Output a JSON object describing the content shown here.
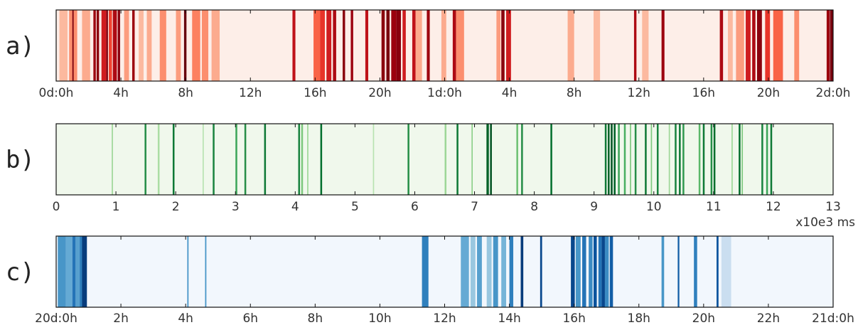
{
  "chart_data": [
    {
      "type": "heatmap",
      "panel_label": "a)",
      "colormap": "Reds",
      "base_color": "#fdeee8",
      "x_unit": "hours",
      "xlim": [
        0,
        48
      ],
      "xticks": [
        0,
        4,
        8,
        12,
        16,
        20,
        24,
        28,
        32,
        36,
        40,
        44,
        48
      ],
      "xtick_labels": [
        "0d:0h",
        "4h",
        "8h",
        "12h",
        "16h",
        "20h",
        "1d:0h",
        "4h",
        "8h",
        "12h",
        "16h",
        "20h",
        "2d:0h"
      ],
      "unit_label": "",
      "events": [
        {
          "x": 0.2,
          "w": 0.5,
          "v": 0.15
        },
        {
          "x": 0.8,
          "w": 0.5,
          "v": 0.3
        },
        {
          "x": 1.0,
          "w": 0.08,
          "v": 0.95
        },
        {
          "x": 1.6,
          "w": 0.5,
          "v": 0.2
        },
        {
          "x": 2.3,
          "w": 0.15,
          "v": 0.85
        },
        {
          "x": 2.5,
          "w": 0.15,
          "v": 0.9
        },
        {
          "x": 2.8,
          "w": 0.3,
          "v": 0.7
        },
        {
          "x": 3.1,
          "w": 0.1,
          "v": 0.95
        },
        {
          "x": 3.25,
          "w": 0.2,
          "v": 0.55
        },
        {
          "x": 3.5,
          "w": 0.25,
          "v": 0.8
        },
        {
          "x": 3.8,
          "w": 0.15,
          "v": 0.9
        },
        {
          "x": 4.2,
          "w": 0.3,
          "v": 0.25
        },
        {
          "x": 4.7,
          "w": 0.15,
          "v": 0.85
        },
        {
          "x": 5.1,
          "w": 0.3,
          "v": 0.15
        },
        {
          "x": 5.6,
          "w": 0.3,
          "v": 0.2
        },
        {
          "x": 6.4,
          "w": 0.4,
          "v": 0.3
        },
        {
          "x": 7.4,
          "w": 0.3,
          "v": 0.25
        },
        {
          "x": 7.9,
          "w": 0.15,
          "v": 1.0
        },
        {
          "x": 8.4,
          "w": 0.5,
          "v": 0.35
        },
        {
          "x": 9.0,
          "w": 0.4,
          "v": 0.3
        },
        {
          "x": 9.6,
          "w": 0.5,
          "v": 0.2
        },
        {
          "x": 14.6,
          "w": 0.18,
          "v": 0.75
        },
        {
          "x": 15.9,
          "w": 0.4,
          "v": 0.45
        },
        {
          "x": 16.3,
          "w": 0.3,
          "v": 0.6
        },
        {
          "x": 16.7,
          "w": 0.3,
          "v": 0.7
        },
        {
          "x": 17.1,
          "w": 0.2,
          "v": 0.8
        },
        {
          "x": 17.7,
          "w": 0.15,
          "v": 0.9
        },
        {
          "x": 18.2,
          "w": 0.15,
          "v": 0.85
        },
        {
          "x": 19.1,
          "w": 0.18,
          "v": 0.75
        },
        {
          "x": 20.1,
          "w": 0.2,
          "v": 0.9
        },
        {
          "x": 20.4,
          "w": 0.2,
          "v": 0.95
        },
        {
          "x": 20.7,
          "w": 0.3,
          "v": 0.85
        },
        {
          "x": 21.0,
          "w": 0.3,
          "v": 0.9
        },
        {
          "x": 21.4,
          "w": 0.2,
          "v": 0.7
        },
        {
          "x": 22.0,
          "w": 0.2,
          "v": 0.75
        },
        {
          "x": 22.1,
          "w": 0.5,
          "v": 0.2
        },
        {
          "x": 22.9,
          "w": 0.18,
          "v": 0.85
        },
        {
          "x": 23.8,
          "w": 0.3,
          "v": 0.2
        },
        {
          "x": 24.5,
          "w": 0.2,
          "v": 0.8
        },
        {
          "x": 24.7,
          "w": 0.5,
          "v": 0.3
        },
        {
          "x": 27.2,
          "w": 0.25,
          "v": 0.25
        },
        {
          "x": 27.5,
          "w": 0.2,
          "v": 0.9
        },
        {
          "x": 27.8,
          "w": 0.3,
          "v": 0.7
        },
        {
          "x": 31.6,
          "w": 0.4,
          "v": 0.2
        },
        {
          "x": 33.2,
          "w": 0.4,
          "v": 0.15
        },
        {
          "x": 35.7,
          "w": 0.15,
          "v": 0.8
        },
        {
          "x": 36.2,
          "w": 0.4,
          "v": 0.15
        },
        {
          "x": 37.4,
          "w": 0.18,
          "v": 0.85
        },
        {
          "x": 41.0,
          "w": 0.2,
          "v": 0.8
        },
        {
          "x": 41.5,
          "w": 0.3,
          "v": 0.15
        },
        {
          "x": 42.0,
          "w": 0.5,
          "v": 0.25
        },
        {
          "x": 42.6,
          "w": 0.3,
          "v": 0.7
        },
        {
          "x": 43.0,
          "w": 0.2,
          "v": 0.8
        },
        {
          "x": 43.3,
          "w": 0.3,
          "v": 0.9
        },
        {
          "x": 43.8,
          "w": 0.3,
          "v": 0.6
        },
        {
          "x": 44.3,
          "w": 0.6,
          "v": 0.45
        },
        {
          "x": 45.6,
          "w": 0.3,
          "v": 0.3
        },
        {
          "x": 47.6,
          "w": 0.18,
          "v": 0.85
        },
        {
          "x": 47.8,
          "w": 0.2,
          "v": 0.95
        }
      ]
    },
    {
      "type": "heatmap",
      "panel_label": "b)",
      "colormap": "Greens",
      "base_color": "#f0f8ec",
      "x_unit": "x10e3 ms",
      "xlim": [
        0,
        13
      ],
      "xticks": [
        0,
        1,
        2,
        3,
        4,
        5,
        6,
        7,
        8,
        9,
        10,
        11,
        12,
        13
      ],
      "xtick_labels": [
        "0",
        "1",
        "2",
        "3",
        "4",
        "5",
        "6",
        "7",
        "8",
        "9",
        "10",
        "11",
        "12",
        "13"
      ],
      "unit_label": "x10e3 ms",
      "events": [
        {
          "x": 0.93,
          "w": 0.02,
          "v": 0.3
        },
        {
          "x": 1.48,
          "w": 0.03,
          "v": 0.7
        },
        {
          "x": 1.7,
          "w": 0.03,
          "v": 0.25
        },
        {
          "x": 1.95,
          "w": 0.03,
          "v": 0.8
        },
        {
          "x": 2.45,
          "w": 0.02,
          "v": 0.2
        },
        {
          "x": 2.62,
          "w": 0.03,
          "v": 0.75
        },
        {
          "x": 3.0,
          "w": 0.03,
          "v": 0.6
        },
        {
          "x": 3.15,
          "w": 0.03,
          "v": 0.7
        },
        {
          "x": 3.48,
          "w": 0.03,
          "v": 0.8
        },
        {
          "x": 4.05,
          "w": 0.03,
          "v": 0.75
        },
        {
          "x": 4.1,
          "w": 0.03,
          "v": 0.4
        },
        {
          "x": 4.2,
          "w": 0.02,
          "v": 0.3
        },
        {
          "x": 4.42,
          "w": 0.03,
          "v": 0.85
        },
        {
          "x": 5.3,
          "w": 0.02,
          "v": 0.2
        },
        {
          "x": 5.88,
          "w": 0.03,
          "v": 0.7
        },
        {
          "x": 6.5,
          "w": 0.03,
          "v": 0.3
        },
        {
          "x": 6.7,
          "w": 0.03,
          "v": 0.8
        },
        {
          "x": 6.95,
          "w": 0.02,
          "v": 0.35
        },
        {
          "x": 7.2,
          "w": 0.04,
          "v": 0.9
        },
        {
          "x": 7.26,
          "w": 0.03,
          "v": 0.95
        },
        {
          "x": 7.7,
          "w": 0.03,
          "v": 0.45
        },
        {
          "x": 7.78,
          "w": 0.03,
          "v": 0.7
        },
        {
          "x": 8.27,
          "w": 0.03,
          "v": 0.85
        },
        {
          "x": 9.18,
          "w": 0.03,
          "v": 0.8
        },
        {
          "x": 9.23,
          "w": 0.03,
          "v": 0.9
        },
        {
          "x": 9.28,
          "w": 0.03,
          "v": 0.95
        },
        {
          "x": 9.33,
          "w": 0.03,
          "v": 0.9
        },
        {
          "x": 9.4,
          "w": 0.03,
          "v": 0.6
        },
        {
          "x": 9.5,
          "w": 0.03,
          "v": 0.55
        },
        {
          "x": 9.6,
          "w": 0.02,
          "v": 0.4
        },
        {
          "x": 9.68,
          "w": 0.03,
          "v": 0.7
        },
        {
          "x": 9.85,
          "w": 0.03,
          "v": 0.8
        },
        {
          "x": 9.95,
          "w": 0.02,
          "v": 0.4
        },
        {
          "x": 10.05,
          "w": 0.03,
          "v": 0.75
        },
        {
          "x": 10.25,
          "w": 0.02,
          "v": 0.3
        },
        {
          "x": 10.35,
          "w": 0.03,
          "v": 0.75
        },
        {
          "x": 10.42,
          "w": 0.03,
          "v": 0.8
        },
        {
          "x": 10.48,
          "w": 0.03,
          "v": 0.65
        },
        {
          "x": 10.75,
          "w": 0.03,
          "v": 0.5
        },
        {
          "x": 10.82,
          "w": 0.03,
          "v": 0.8
        },
        {
          "x": 10.95,
          "w": 0.03,
          "v": 0.7
        },
        {
          "x": 11.0,
          "w": 0.03,
          "v": 0.85
        },
        {
          "x": 11.3,
          "w": 0.02,
          "v": 0.3
        },
        {
          "x": 11.42,
          "w": 0.03,
          "v": 0.85
        },
        {
          "x": 11.47,
          "w": 0.02,
          "v": 0.4
        },
        {
          "x": 11.8,
          "w": 0.03,
          "v": 0.75
        },
        {
          "x": 11.88,
          "w": 0.03,
          "v": 0.6
        },
        {
          "x": 11.95,
          "w": 0.03,
          "v": 0.8
        }
      ]
    },
    {
      "type": "heatmap",
      "panel_label": "c)",
      "colormap": "Blues",
      "base_color": "#f2f7fd",
      "x_unit": "hours",
      "xlim": [
        0,
        24
      ],
      "xticks": [
        0,
        2,
        4,
        6,
        8,
        10,
        12,
        14,
        16,
        18,
        20,
        22,
        24
      ],
      "xtick_labels": [
        "20d:0h",
        "2h",
        "4h",
        "6h",
        "8h",
        "10h",
        "12h",
        "14h",
        "16h",
        "18h",
        "20h",
        "22h",
        "21d:0h"
      ],
      "unit_label": "",
      "events": [
        {
          "x": 0.05,
          "w": 0.25,
          "v": 0.55
        },
        {
          "x": 0.3,
          "w": 0.2,
          "v": 0.45
        },
        {
          "x": 0.5,
          "w": 0.1,
          "v": 0.7
        },
        {
          "x": 0.6,
          "w": 0.12,
          "v": 0.5
        },
        {
          "x": 0.72,
          "w": 0.1,
          "v": 0.65
        },
        {
          "x": 0.8,
          "w": 0.15,
          "v": 0.95
        },
        {
          "x": 4.05,
          "w": 0.04,
          "v": 0.55
        },
        {
          "x": 4.6,
          "w": 0.04,
          "v": 0.55
        },
        {
          "x": 11.3,
          "w": 0.2,
          "v": 0.65
        },
        {
          "x": 12.5,
          "w": 0.25,
          "v": 0.45
        },
        {
          "x": 12.8,
          "w": 0.15,
          "v": 0.3
        },
        {
          "x": 13.0,
          "w": 0.15,
          "v": 0.5
        },
        {
          "x": 13.3,
          "w": 0.15,
          "v": 0.3
        },
        {
          "x": 13.5,
          "w": 0.15,
          "v": 0.55
        },
        {
          "x": 13.75,
          "w": 0.15,
          "v": 0.4
        },
        {
          "x": 14.0,
          "w": 0.12,
          "v": 0.65
        },
        {
          "x": 14.35,
          "w": 0.08,
          "v": 0.95
        },
        {
          "x": 14.95,
          "w": 0.06,
          "v": 0.9
        },
        {
          "x": 15.9,
          "w": 0.12,
          "v": 0.9
        },
        {
          "x": 16.05,
          "w": 0.15,
          "v": 0.55
        },
        {
          "x": 16.25,
          "w": 0.12,
          "v": 0.7
        },
        {
          "x": 16.45,
          "w": 0.12,
          "v": 0.6
        },
        {
          "x": 16.6,
          "w": 0.1,
          "v": 0.85
        },
        {
          "x": 16.75,
          "w": 0.1,
          "v": 0.7
        },
        {
          "x": 16.85,
          "w": 0.1,
          "v": 0.9
        },
        {
          "x": 16.95,
          "w": 0.12,
          "v": 0.6
        },
        {
          "x": 17.1,
          "w": 0.1,
          "v": 0.8
        },
        {
          "x": 18.7,
          "w": 0.08,
          "v": 0.55
        },
        {
          "x": 19.2,
          "w": 0.05,
          "v": 0.8
        },
        {
          "x": 19.7,
          "w": 0.1,
          "v": 0.65
        },
        {
          "x": 20.4,
          "w": 0.06,
          "v": 0.85
        },
        {
          "x": 20.55,
          "w": 0.3,
          "v": 0.12
        }
      ]
    }
  ]
}
